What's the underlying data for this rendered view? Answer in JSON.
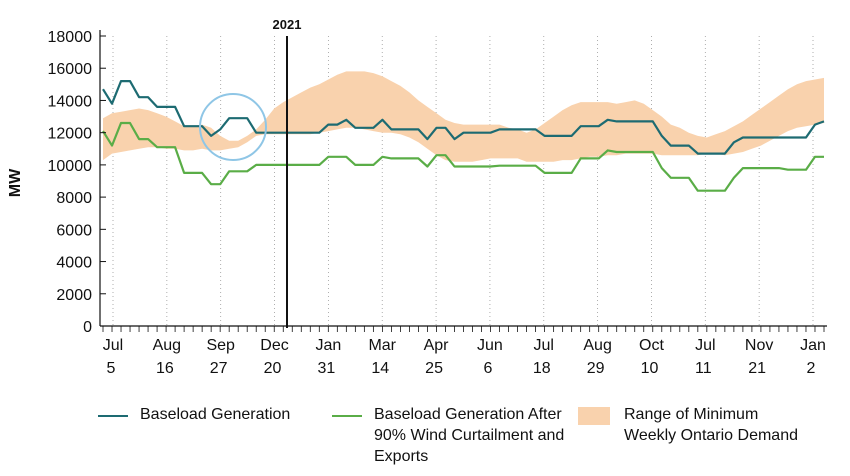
{
  "chart_data": {
    "type": "line",
    "ylabel": "MW",
    "ylim": [
      0,
      18000
    ],
    "yticks": [
      "0",
      "2000",
      "4000",
      "6000",
      "8000",
      "10000",
      "12000",
      "14000",
      "16000",
      "18000"
    ],
    "xticks": [
      {
        "month": "Jul",
        "day": "5"
      },
      {
        "month": "Aug",
        "day": "16"
      },
      {
        "month": "Sep",
        "day": "27"
      },
      {
        "month": "Dec",
        "day": "20"
      },
      {
        "month": "Jan",
        "day": "31"
      },
      {
        "month": "Mar",
        "day": "14"
      },
      {
        "month": "Apr",
        "day": "25"
      },
      {
        "month": "Jun",
        "day": "6"
      },
      {
        "month": "Jul",
        "day": "18"
      },
      {
        "month": "Aug",
        "day": "29"
      },
      {
        "month": "Oct",
        "day": "10"
      },
      {
        "month": "Jul",
        "day": "11"
      },
      {
        "month": "Nov",
        "day": "21"
      },
      {
        "month": "Jan",
        "day": "2"
      }
    ],
    "annotation": {
      "label": "2021"
    },
    "grid": "vertical dotted",
    "legend_position": "bottom",
    "series": [
      {
        "name": "Baseload Generation",
        "color": "#1d6b72",
        "values": [
          14700,
          13800,
          15200,
          15200,
          14200,
          14200,
          13600,
          13600,
          13600,
          12400,
          12400,
          12400,
          11800,
          12200,
          12900,
          12900,
          12900,
          12000,
          12000,
          12000,
          12000,
          12000,
          12000,
          12000,
          12000,
          12500,
          12500,
          12800,
          12300,
          12300,
          12300,
          12800,
          12200,
          12200,
          12200,
          12200,
          11600,
          12300,
          12300,
          11600,
          12000,
          12000,
          12000,
          12000,
          12200,
          12200,
          12200,
          12200,
          12200,
          11800,
          11800,
          11800,
          11800,
          12400,
          12400,
          12400,
          12800,
          12700,
          12700,
          12700,
          12700,
          12700,
          11800,
          11200,
          11200,
          11200,
          10700,
          10700,
          10700,
          10700,
          11400,
          11700,
          11700,
          11700,
          11700,
          11700,
          11700,
          11700,
          11700,
          12500,
          12700
        ]
      },
      {
        "name": "Baseload Generation After 90% Wind Curtailment and Exports",
        "color": "#5aad47",
        "values": [
          12100,
          11200,
          12600,
          12600,
          11600,
          11600,
          11100,
          11100,
          11100,
          9500,
          9500,
          9500,
          8800,
          8800,
          9600,
          9600,
          9600,
          10000,
          10000,
          10000,
          10000,
          10000,
          10000,
          10000,
          10000,
          10500,
          10500,
          10500,
          10000,
          10000,
          10000,
          10500,
          10400,
          10400,
          10400,
          10400,
          9900,
          10600,
          10600,
          9900,
          9900,
          9900,
          9900,
          9900,
          9950,
          9950,
          9950,
          9950,
          9950,
          9500,
          9500,
          9500,
          9500,
          10400,
          10400,
          10400,
          10900,
          10800,
          10800,
          10800,
          10800,
          10800,
          9800,
          9200,
          9200,
          9200,
          8400,
          8400,
          8400,
          8400,
          9200,
          9800,
          9800,
          9800,
          9800,
          9800,
          9700,
          9700,
          9700,
          10500,
          10500
        ]
      },
      {
        "name": "Range of Minimum\nWeekly Ontario Demand",
        "color": "#f9d2ad",
        "type": "area",
        "upper": [
          12900,
          13200,
          13300,
          13400,
          13500,
          13400,
          13200,
          13000,
          12700,
          12400,
          12400,
          12500,
          12300,
          11800,
          11500,
          11500,
          11800,
          12200,
          12800,
          13500,
          13900,
          14200,
          14500,
          14800,
          15000,
          15300,
          15600,
          15800,
          15800,
          15800,
          15700,
          15500,
          15200,
          14900,
          14500,
          14000,
          13600,
          13200,
          12800,
          12600,
          12500,
          12500,
          12500,
          12500,
          12500,
          12300,
          12200,
          12000,
          12200,
          12600,
          13000,
          13400,
          13700,
          13900,
          13900,
          13900,
          13900,
          13800,
          13900,
          14000,
          13800,
          13400,
          13000,
          12500,
          12300,
          12000,
          11800,
          11700,
          11900,
          12100,
          12400,
          12700,
          13100,
          13500,
          13900,
          14300,
          14700,
          15000,
          15200,
          15300,
          15400
        ],
        "lower": [
          10300,
          10700,
          10800,
          10900,
          11000,
          11100,
          11100,
          11000,
          11000,
          10900,
          10900,
          11000,
          10900,
          10900,
          11000,
          11100,
          11400,
          11800,
          11900,
          11900,
          11900,
          11900,
          11900,
          11900,
          12000,
          12100,
          12200,
          12300,
          12300,
          12200,
          12100,
          12000,
          12000,
          11900,
          11700,
          11400,
          11000,
          10600,
          10300,
          10200,
          10200,
          10200,
          10300,
          10400,
          10400,
          10400,
          10400,
          10200,
          10200,
          10200,
          10200,
          10300,
          10300,
          10400,
          10500,
          10500,
          10600,
          10600,
          10700,
          10700,
          10700,
          10700,
          10600,
          10600,
          10600,
          10600,
          10600,
          10700,
          10700,
          10600,
          10700,
          10800,
          11000,
          11200,
          11500,
          11800,
          12100,
          12300,
          12400,
          12500,
          12600
        ]
      }
    ]
  }
}
